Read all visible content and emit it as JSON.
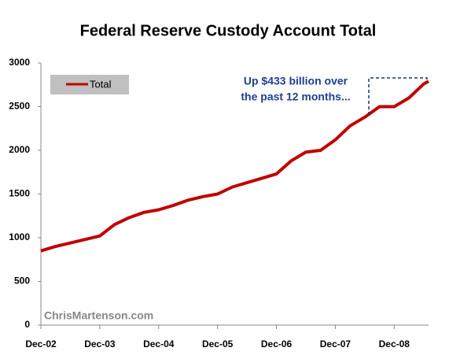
{
  "chart_data": {
    "type": "line",
    "title": "Federal Reserve Custody Account Total",
    "annotation": [
      "Up $433 billion over",
      "the past 12 months..."
    ],
    "watermark": "ChrisMartenson.com",
    "legend": "upper left",
    "x": [
      "2002-12",
      "2003-03",
      "2003-06",
      "2003-09",
      "2003-12",
      "2004-03",
      "2004-06",
      "2004-09",
      "2004-12",
      "2005-03",
      "2005-06",
      "2005-09",
      "2005-12",
      "2006-03",
      "2006-06",
      "2006-09",
      "2006-12",
      "2007-03",
      "2007-06",
      "2007-09",
      "2007-12",
      "2008-03",
      "2008-06",
      "2008-09",
      "2008-12",
      "2009-03",
      "2009-06",
      "2009-07"
    ],
    "series": [
      {
        "name": "Total",
        "color": "#c00000",
        "values": [
          850,
          900,
          940,
          980,
          1020,
          1150,
          1230,
          1290,
          1320,
          1370,
          1430,
          1470,
          1500,
          1580,
          1630,
          1680,
          1730,
          1880,
          1980,
          2000,
          2120,
          2280,
          2380,
          2500,
          2500,
          2600,
          2760,
          2790
        ]
      }
    ],
    "xlim": [
      "2002-12",
      "2009-07"
    ],
    "xticks": [
      {
        "value": "2002-12",
        "label": "Dec-02"
      },
      {
        "value": "2003-12",
        "label": "Dec-03"
      },
      {
        "value": "2004-12",
        "label": "Dec-04"
      },
      {
        "value": "2005-12",
        "label": "Dec-05"
      },
      {
        "value": "2006-12",
        "label": "Dec-06"
      },
      {
        "value": "2007-12",
        "label": "Dec-07"
      },
      {
        "value": "2008-12",
        "label": "Dec-08"
      }
    ],
    "ylim": [
      0,
      3000
    ],
    "yticks": [
      0,
      500,
      1000,
      1500,
      2000,
      2500,
      3000
    ],
    "grid": false
  }
}
